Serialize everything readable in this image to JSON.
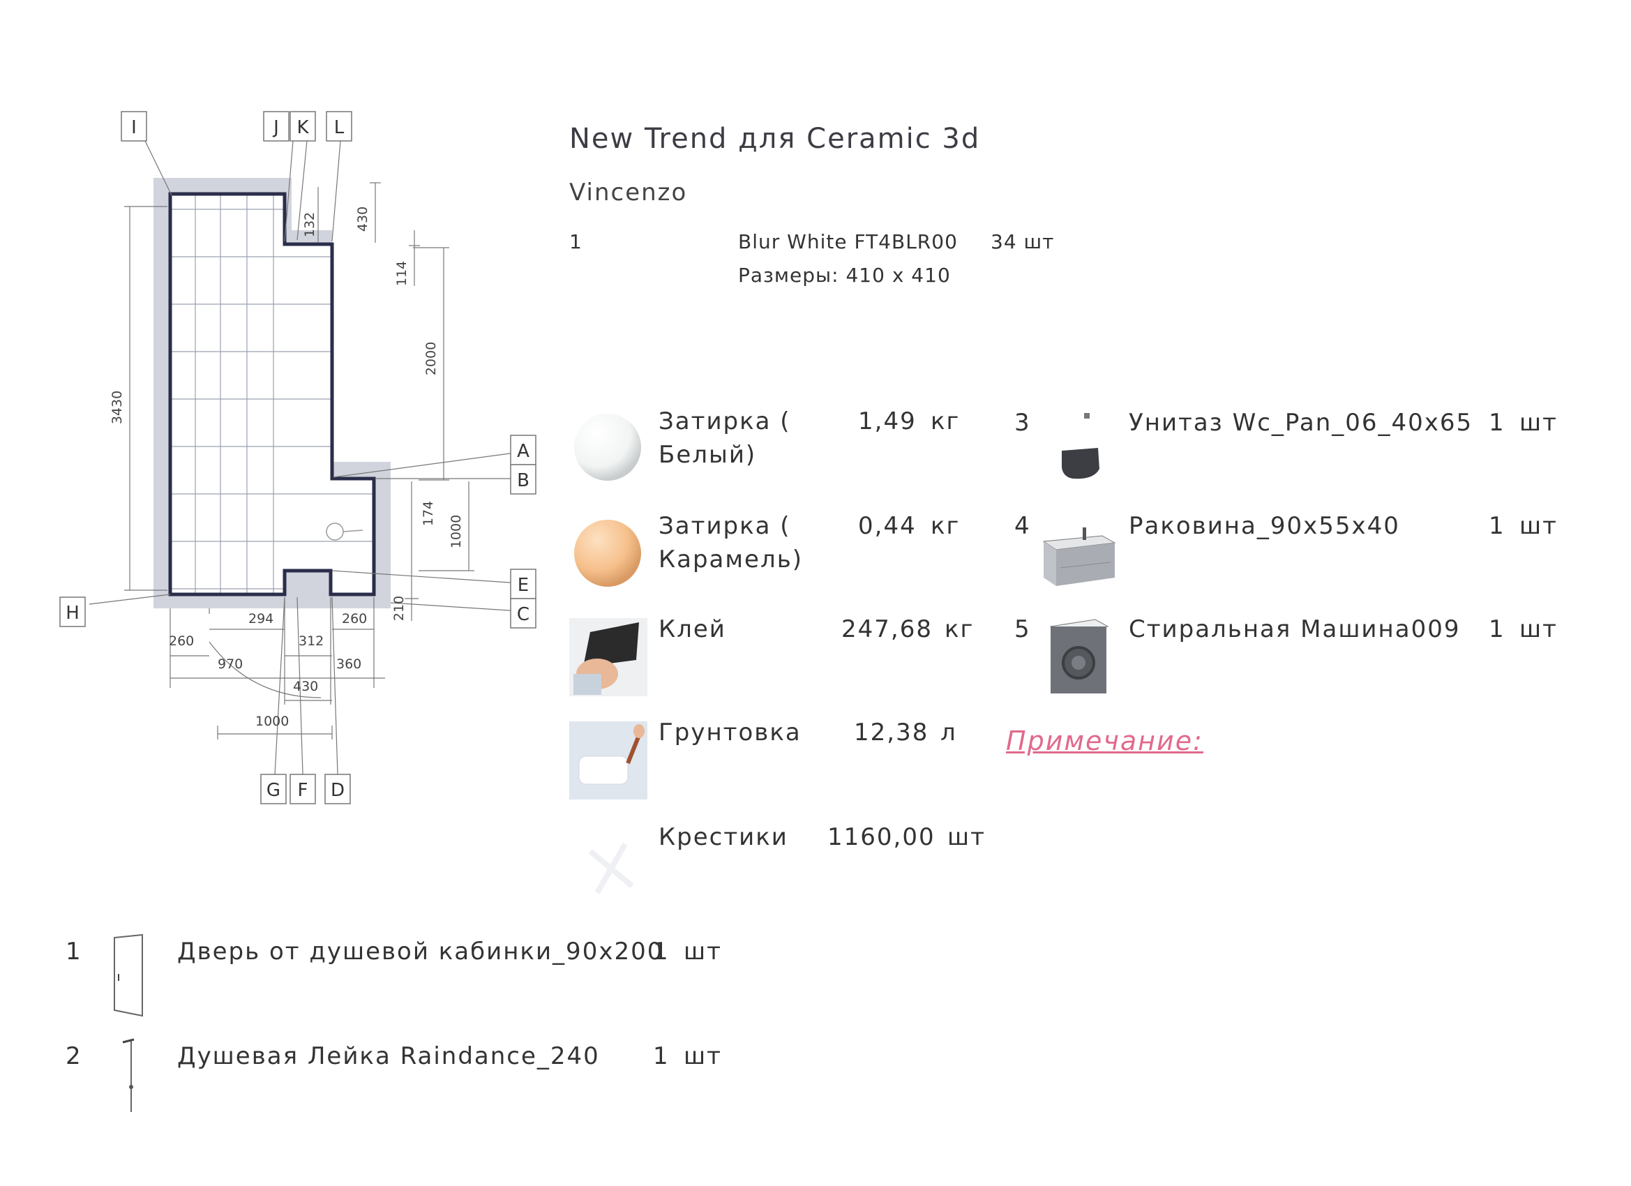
{
  "header": {
    "title": "New Trend для Ceramic 3d",
    "collection": "Vincenzo"
  },
  "tile": {
    "number": "1",
    "name": "Blur White FT4BLR00",
    "qty": "34 шт",
    "size_label": "Размеры: 410 x 410"
  },
  "plan": {
    "labels": [
      "I",
      "J",
      "K",
      "L",
      "A",
      "B",
      "E",
      "C",
      "H",
      "G",
      "F",
      "D"
    ],
    "dimensions": {
      "height_total": "3430",
      "d132": "132",
      "d430_top": "430",
      "d114": "114",
      "d2000": "2000",
      "d174": "174",
      "d1000_v": "1000",
      "d210": "210",
      "d294": "294",
      "d260_right": "260",
      "d260_left": "260",
      "d312": "312",
      "d970": "970",
      "d360": "360",
      "d430_bottom": "430",
      "d1000_h": "1000"
    }
  },
  "materials": [
    {
      "icon": "white-sphere-icon",
      "color": "#ffffff",
      "name_line1": "Затирка (",
      "name_line2": "Белый)",
      "amount": "1,49",
      "unit": "кг"
    },
    {
      "icon": "caramel-sphere-icon",
      "color": "#f6c89a",
      "name_line1": "Затирка (",
      "name_line2": "Карамель)",
      "amount": "0,44",
      "unit": "кг"
    },
    {
      "icon": "trowel-icon",
      "name_line1": "Клей",
      "name_line2": "",
      "amount": "247,68",
      "unit": "кг"
    },
    {
      "icon": "paint-roller-icon",
      "name_line1": "Грунтовка",
      "name_line2": "",
      "amount": "12,38",
      "unit": "л"
    },
    {
      "icon": "tile-spacer-icon",
      "name_line1": "Крестики",
      "name_line2": "",
      "amount": "1160,00",
      "unit": "шт"
    }
  ],
  "fixtures_right": [
    {
      "num": "3",
      "icon": "toilet-icon",
      "name": "Унитаз Wc_Pan_06_40x65",
      "qty": "1",
      "unit": "шт"
    },
    {
      "num": "4",
      "icon": "sink-cabinet-icon",
      "name": "Раковина_90x55x40",
      "qty": "1",
      "unit": "шт"
    },
    {
      "num": "5",
      "icon": "washing-machine-icon",
      "name": "Стиральная Машина009",
      "qty": "1",
      "unit": "шт"
    }
  ],
  "note_label": "Примечание:",
  "fixtures_bottom": [
    {
      "num": "1",
      "icon": "shower-door-icon",
      "name": "Дверь от душевой кабинки_90x200",
      "qty": "1",
      "unit": "шт"
    },
    {
      "num": "2",
      "icon": "shower-head-icon",
      "name": "Душевая Лейка Raindance_240",
      "qty": "1",
      "unit": "шт"
    }
  ],
  "colors": {
    "wall_fill": "#c9ccd6",
    "floor_outline": "#2a2e4a",
    "grid": "#8a8fa0",
    "note": "#e06a8c"
  }
}
